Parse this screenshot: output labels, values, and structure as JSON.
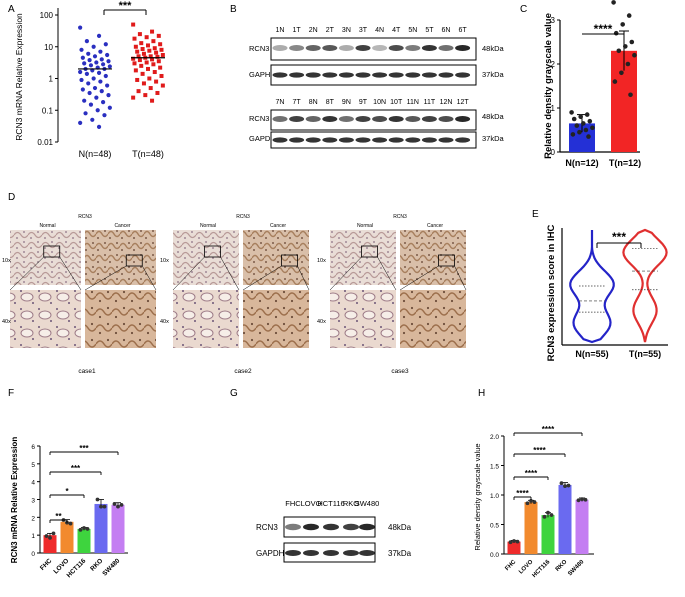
{
  "panel_labels": [
    "A",
    "B",
    "C",
    "D",
    "E",
    "F",
    "G",
    "H"
  ],
  "chart_data": [
    {
      "id": "A",
      "type": "scatter",
      "ylabel": "RCN3 mRNA Relative Expression",
      "yscale": "log",
      "yticks": [
        "100",
        "10",
        "1",
        "0.1",
        "0.01"
      ],
      "categories": [
        "N(n=48)",
        "T(n=48)"
      ],
      "significance": "***",
      "colors": [
        "#2a2fc0",
        "#e01b1b"
      ],
      "series": [
        {
          "name": "N(n=48)",
          "median": 2.0,
          "values": [
            40,
            22,
            15,
            12,
            10,
            8,
            7,
            6,
            5.5,
            5,
            4.5,
            4,
            3.8,
            3.5,
            3.2,
            3,
            2.8,
            2.6,
            2.4,
            2.2,
            2,
            2,
            1.8,
            1.6,
            1.5,
            1.4,
            1.2,
            1,
            0.9,
            0.8,
            0.7,
            0.6,
            0.5,
            0.45,
            0.4,
            0.35,
            0.3,
            0.25,
            0.2,
            0.18,
            0.15,
            0.12,
            0.1,
            0.08,
            0.07,
            0.05,
            0.04,
            0.03
          ]
        },
        {
          "name": "T(n=48)",
          "median": 4.5,
          "values": [
            50,
            30,
            25,
            22,
            20,
            18,
            15,
            13,
            12,
            11,
            10,
            9,
            8.5,
            8,
            7.5,
            7,
            6.5,
            6,
            5.5,
            5,
            5,
            4.8,
            4.5,
            4.2,
            4,
            3.8,
            3.5,
            3.2,
            3,
            2.8,
            2.5,
            2.2,
            2,
            1.8,
            1.6,
            1.4,
            1.2,
            1,
            0.9,
            0.8,
            0.7,
            0.6,
            0.5,
            0.4,
            0.35,
            0.3,
            0.25,
            0.2
          ]
        }
      ]
    },
    {
      "id": "C",
      "type": "bar",
      "ylabel": "Relative density grayscale value",
      "ylim": [
        0,
        3
      ],
      "yticks": [
        "0",
        "1",
        "2",
        "3"
      ],
      "categories": [
        "N(n=12)",
        "T(n=12)"
      ],
      "values": [
        0.65,
        2.3
      ],
      "errors": [
        0.2,
        0.45
      ],
      "colors": [
        "#2430d6",
        "#f22525"
      ],
      "significance": "****",
      "points": [
        [
          0.9,
          0.85,
          0.8,
          0.75,
          0.7,
          0.65,
          0.6,
          0.55,
          0.5,
          0.45,
          0.4,
          0.35
        ],
        [
          3.4,
          3.1,
          2.9,
          2.7,
          2.5,
          2.4,
          2.3,
          2.2,
          2.0,
          1.8,
          1.6,
          1.3
        ]
      ]
    },
    {
      "id": "E",
      "type": "violin",
      "ylabel": "RCN3 expression score in IHC",
      "ylim": [
        0.5,
        3.5
      ],
      "categories": [
        "N(n=55)",
        "T(n=55)"
      ],
      "colors": [
        "#2424c8",
        "#e03030"
      ],
      "significance": "***",
      "quartiles": [
        [
          1.3,
          1.6,
          2.0
        ],
        [
          1.9,
          2.4,
          3.0
        ]
      ]
    },
    {
      "id": "F",
      "type": "bar",
      "ylabel": "RCN3 mRNA Relative Expression",
      "ylim": [
        0,
        6
      ],
      "yticks": [
        "0",
        "1",
        "2",
        "3",
        "4",
        "5",
        "6"
      ],
      "categories": [
        "FHC",
        "LOVO",
        "HCT116",
        "RKO",
        "SW480"
      ],
      "values": [
        1.0,
        1.75,
        1.35,
        2.75,
        2.7
      ],
      "errors": [
        0.1,
        0.12,
        0.08,
        0.25,
        0.12
      ],
      "colors": [
        "#ef2b2b",
        "#f28a2e",
        "#3ed43e",
        "#6a6af0",
        "#c47ef2"
      ],
      "points": [
        [
          0.95,
          0.85,
          1.1
        ],
        [
          1.85,
          1.7,
          1.65
        ],
        [
          1.3,
          1.4,
          1.35
        ],
        [
          3.0,
          2.6,
          2.6
        ],
        [
          2.75,
          2.6,
          2.7
        ]
      ],
      "comparisons": [
        "**",
        "*",
        "***",
        "***"
      ]
    },
    {
      "id": "H",
      "type": "bar",
      "ylabel": "Relative density grayscale value",
      "ylim": [
        0,
        2
      ],
      "yticks": [
        "0.0",
        "0.5",
        "1.0",
        "1.5",
        "2.0"
      ],
      "categories": [
        "FHC",
        "LOVO",
        "HCT116",
        "RKO",
        "SW480"
      ],
      "values": [
        0.21,
        0.88,
        0.66,
        1.17,
        0.92
      ],
      "errors": [
        0.02,
        0.03,
        0.04,
        0.04,
        0.03
      ],
      "colors": [
        "#ef2b2b",
        "#f28a2e",
        "#3ed43e",
        "#6a6af0",
        "#c47ef2"
      ],
      "points": [
        [
          0.2,
          0.22,
          0.21
        ],
        [
          0.86,
          0.9,
          0.88
        ],
        [
          0.63,
          0.7,
          0.66
        ],
        [
          1.2,
          1.15,
          1.16
        ],
        [
          0.91,
          0.93,
          0.92
        ]
      ],
      "comparisons": [
        "****",
        "****",
        "****",
        "****"
      ]
    }
  ],
  "blot_B": {
    "top_lanes": [
      "1N",
      "1T",
      "2N",
      "2T",
      "3N",
      "3T",
      "4N",
      "4T",
      "5N",
      "5T",
      "6N",
      "6T"
    ],
    "bottom_lanes": [
      "7N",
      "7T",
      "8N",
      "8T",
      "9N",
      "9T",
      "10N",
      "10T",
      "11N",
      "11T",
      "12N",
      "12T"
    ],
    "rcn3_label": "RCN3",
    "gaph_label": "GAPH",
    "gapdh_label": "GAPDH",
    "rcn3_kda": "48kDa",
    "gapdh_kda": "37kDa"
  },
  "ihc_D": {
    "header": "RCN3",
    "normal_label": "Normal",
    "cancer_label": "Cancer",
    "mag_10x": "10x",
    "mag_40x": "40x",
    "cases": [
      "case1",
      "case2",
      "case3"
    ]
  },
  "blot_G": {
    "lanes": [
      "FHC",
      "LOVO",
      "HCT116",
      "RKO",
      "SW480"
    ],
    "rcn3_label": "RCN3",
    "gapdh_label": "GAPDH",
    "rcn3_kda": "48kDa",
    "gapdh_kda": "37kDa"
  }
}
